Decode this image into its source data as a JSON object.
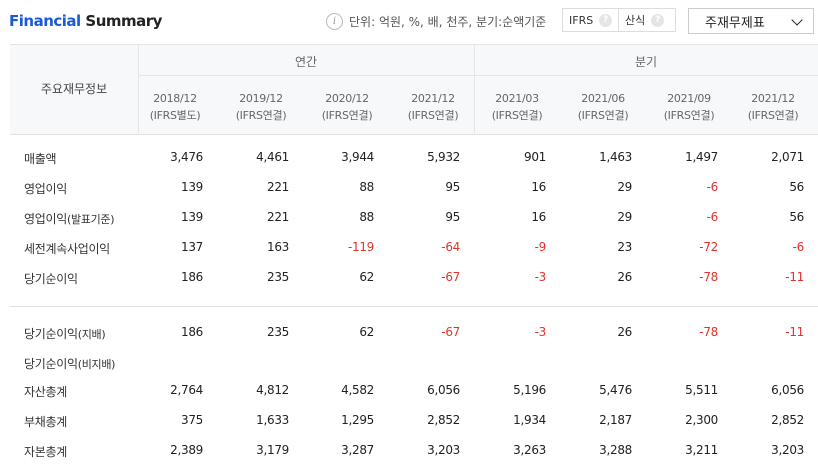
{
  "header": {
    "title_part1": "Financial",
    "title_part2": "Summary",
    "unit_text": "단위: 억원, %, 배, 천주, 분기:순액기준",
    "ifrs_label": "IFRS",
    "sansik_label": "산식",
    "dropdown_value": "주재무제표"
  },
  "table": {
    "row_header": "주요재무정보",
    "group_annual": "연간",
    "group_quarter": "분기",
    "columns": [
      {
        "date": "2018/12",
        "basis": "(IFRS별도)"
      },
      {
        "date": "2019/12",
        "basis": "(IFRS연결)"
      },
      {
        "date": "2020/12",
        "basis": "(IFRS연결)"
      },
      {
        "date": "2021/12",
        "basis": "(IFRS연결)"
      },
      {
        "date": "2021/03",
        "basis": "(IFRS연결)"
      },
      {
        "date": "2021/06",
        "basis": "(IFRS연결)"
      },
      {
        "date": "2021/09",
        "basis": "(IFRS연결)"
      },
      {
        "date": "2021/12",
        "basis": "(IFRS연결)"
      }
    ],
    "rows": [
      {
        "label": "매출액",
        "sub": "",
        "values": [
          "3,476",
          "4,461",
          "3,944",
          "5,932",
          "901",
          "1,463",
          "1,497",
          "2,071"
        ]
      },
      {
        "label": "영업이익",
        "sub": "",
        "values": [
          "139",
          "221",
          "88",
          "95",
          "16",
          "29",
          "-6",
          "56"
        ]
      },
      {
        "label": "영업이익",
        "sub": "(발표기준)",
        "values": [
          "139",
          "221",
          "88",
          "95",
          "16",
          "29",
          "-6",
          "56"
        ]
      },
      {
        "label": "세전계속사업이익",
        "sub": "",
        "values": [
          "137",
          "163",
          "-119",
          "-64",
          "-9",
          "23",
          "-72",
          "-6"
        ]
      },
      {
        "label": "당기순이익",
        "sub": "",
        "values": [
          "186",
          "235",
          "62",
          "-67",
          "-3",
          "26",
          "-78",
          "-11"
        ]
      },
      {
        "label": "당기순이익",
        "sub": "(지배)",
        "values": [
          "186",
          "235",
          "62",
          "-67",
          "-3",
          "26",
          "-78",
          "-11"
        ]
      },
      {
        "label": "당기순이익",
        "sub": "(비지배)",
        "values": [
          "",
          "",
          "",
          "",
          "",
          "",
          "",
          ""
        ]
      },
      {
        "label": "자산총계",
        "sub": "",
        "values": [
          "2,764",
          "4,812",
          "4,582",
          "6,056",
          "5,196",
          "5,476",
          "5,511",
          "6,056"
        ]
      },
      {
        "label": "부채총계",
        "sub": "",
        "values": [
          "375",
          "1,633",
          "1,295",
          "2,852",
          "1,934",
          "2,187",
          "2,300",
          "2,852"
        ]
      },
      {
        "label": "자본총계",
        "sub": "",
        "values": [
          "2,389",
          "3,179",
          "3,287",
          "3,203",
          "3,263",
          "3,288",
          "3,211",
          "3,203"
        ]
      }
    ]
  }
}
